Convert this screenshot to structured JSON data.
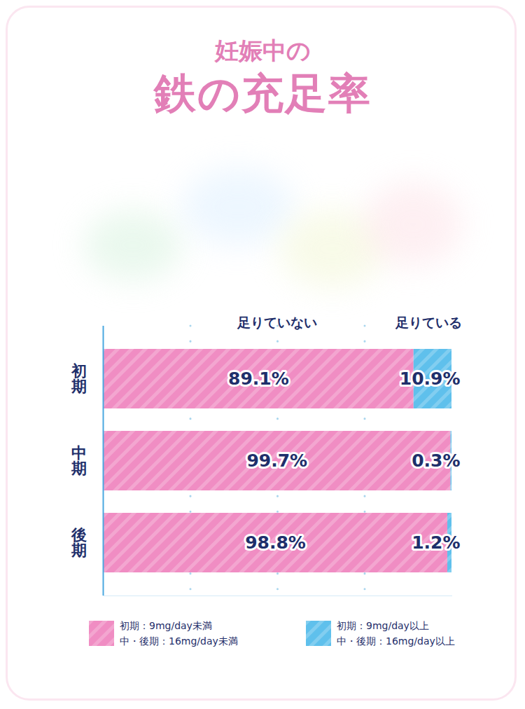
{
  "chart_data": {
    "type": "bar",
    "title": "妊娠中の",
    "subtitle": "鉄の充足率",
    "orientation": "horizontal",
    "stacked": true,
    "data_labels": true,
    "grid": true,
    "tick_labels": "y",
    "categories": [
      "初期",
      "中期",
      "後期"
    ],
    "xlim": [
      0,
      100
    ],
    "xticks": [
      25,
      50,
      75
    ],
    "series": [
      {
        "name": "足りていない",
        "color": "#f08dc3",
        "values": [
          89.1,
          99.7,
          98.8
        ],
        "value_labels": [
          "89.1%",
          "99.7%",
          "98.8%"
        ],
        "description": [
          "初期：9mg/day未満",
          "中・後期：16mg/day未満"
        ]
      },
      {
        "name": "足りている",
        "color": "#5fc0ec",
        "values": [
          10.9,
          0.3,
          1.2
        ],
        "value_labels": [
          "10.9%",
          "0.3%",
          "1.2%"
        ],
        "description": [
          "初期：9mg/day以上",
          "中・後期：16mg/day以上"
        ]
      }
    ]
  }
}
